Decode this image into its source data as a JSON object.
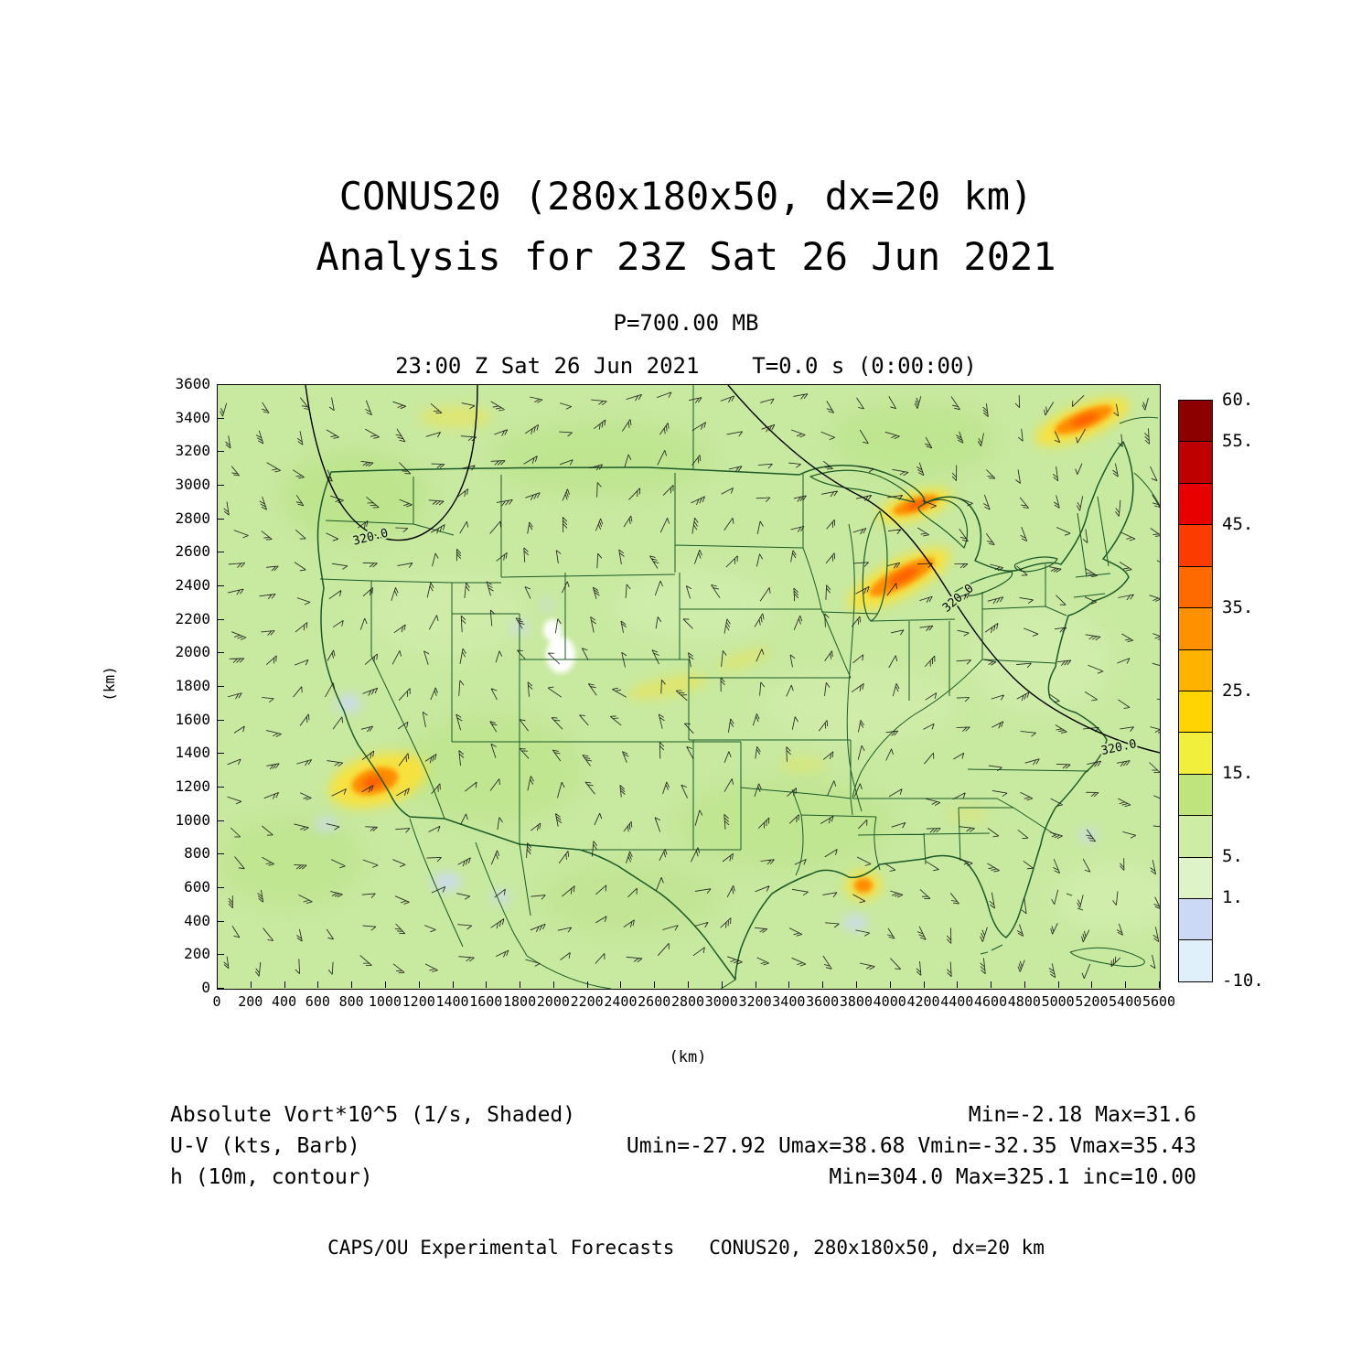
{
  "header": {
    "title": "CONUS20 (280x180x50, dx=20 km)",
    "subtitle": "Analysis for 23Z Sat 26 Jun 2021",
    "pressure_label": "P=700.00 MB",
    "time_label": "23:00 Z Sat 26 Jun 2021    T=0.0 s (0:00:00)"
  },
  "chart_data": {
    "type": "heatmap",
    "title": "CONUS20 (280x180x50, dx=20 km)",
    "subtitle": "Analysis for 23Z Sat 26 Jun 2021",
    "pressure_level_mb": 700.0,
    "valid_time": "23:00 Z Sat 26 Jun 2021",
    "forecast_time": "T=0.0 s (0:00:00)",
    "xlabel": "(km)",
    "ylabel": "(km)",
    "xlim": [
      0,
      5600
    ],
    "ylim": [
      0,
      3600
    ],
    "xticks": [
      0,
      200,
      400,
      600,
      800,
      1000,
      1200,
      1400,
      1600,
      1800,
      2000,
      2200,
      2400,
      2600,
      2800,
      3000,
      3200,
      3400,
      3600,
      3800,
      4000,
      4200,
      4400,
      4600,
      4800,
      5000,
      5200,
      5400,
      5600
    ],
    "yticks": [
      0,
      200,
      400,
      600,
      800,
      1000,
      1200,
      1400,
      1600,
      1800,
      2000,
      2200,
      2400,
      2600,
      2800,
      3000,
      3200,
      3400,
      3600
    ],
    "shaded_field": {
      "name": "Absolute Vort*10^5",
      "units": "1/s",
      "style": "Shaded",
      "min": -2.18,
      "max": 31.6
    },
    "wind_field": {
      "name": "U-V",
      "units": "kts",
      "style": "Barb",
      "umin": -27.92,
      "umax": 38.68,
      "vmin": -32.35,
      "vmax": 35.43
    },
    "height_contours": {
      "name": "h",
      "units": "10m",
      "style": "contour",
      "min": 304.0,
      "max": 325.1,
      "inc": 10.0,
      "contour_label": "320.0"
    },
    "colorbar": {
      "levels": [
        -10,
        -5,
        1,
        5,
        10,
        15,
        20,
        25,
        30,
        35,
        40,
        45,
        50,
        55,
        60
      ],
      "colors_top_to_bottom": [
        "#8c0000",
        "#bf0000",
        "#e60000",
        "#fa3c00",
        "#ff6a00",
        "#ff9000",
        "#ffb300",
        "#ffd400",
        "#f2ee3c",
        "#bfe47c",
        "#cdeca4",
        "#def3c8",
        "#ccd9f4",
        "#dff0fa"
      ],
      "ticks": [
        {
          "label": "60.",
          "index": 0
        },
        {
          "label": "55.",
          "index": 1
        },
        {
          "label": "45.",
          "index": 3
        },
        {
          "label": "35.",
          "index": 5
        },
        {
          "label": "25.",
          "index": 7
        },
        {
          "label": "15.",
          "index": 9
        },
        {
          "label": "5.",
          "index": 11
        },
        {
          "label": "1.",
          "index": 12
        },
        {
          "label": "-10.",
          "index": 14
        }
      ]
    },
    "map_colors": {
      "background": "#c8e9a0",
      "state_borders": "#1c5a28",
      "contour": "#000000"
    }
  },
  "legend": {
    "rows": [
      {
        "left": "Absolute Vort*10^5 (1/s, Shaded)",
        "right": "Min=-2.18 Max=31.6"
      },
      {
        "left": "U-V (kts, Barb)",
        "right": "Umin=-27.92 Umax=38.68 Vmin=-32.35 Vmax=35.43"
      },
      {
        "left": "h (10m, contour)",
        "right": "Min=304.0 Max=325.1 inc=10.00"
      }
    ]
  },
  "footer": "CAPS/OU Experimental Forecasts   CONUS20, 280x180x50, dx=20 km"
}
